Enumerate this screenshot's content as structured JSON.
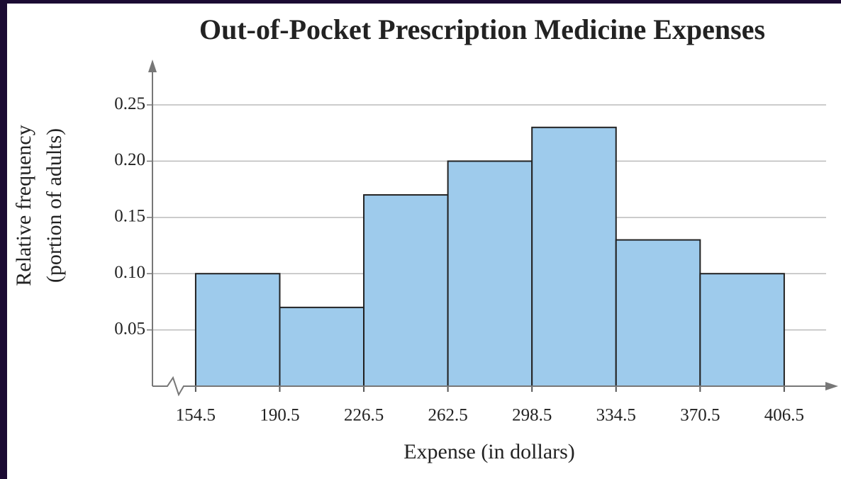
{
  "chart_data": {
    "type": "histogram",
    "title": "Out-of-Pocket Prescription Medicine Expenses",
    "xlabel": "Expense (in dollars)",
    "ylabel": [
      "Relative frequency",
      "(portion of adults)"
    ],
    "bins": [
      154.5,
      190.5,
      226.5,
      262.5,
      298.5,
      334.5,
      370.5,
      406.5
    ],
    "values": [
      0.1,
      0.07,
      0.17,
      0.2,
      0.23,
      0.13,
      0.1
    ],
    "color": "#9ecbec",
    "xlim": [
      136,
      429
    ],
    "xticks": [
      154.5,
      190.5,
      226.5,
      262.5,
      298.5,
      334.5,
      370.5,
      406.5
    ],
    "ylim": [
      0,
      0.28
    ],
    "yticks": [
      0.05,
      {
        "value": 0.1,
        "label": "0.10"
      },
      0.15,
      {
        "value": 0.2,
        "label": "0.20"
      },
      0.25
    ],
    "grid": true
  }
}
